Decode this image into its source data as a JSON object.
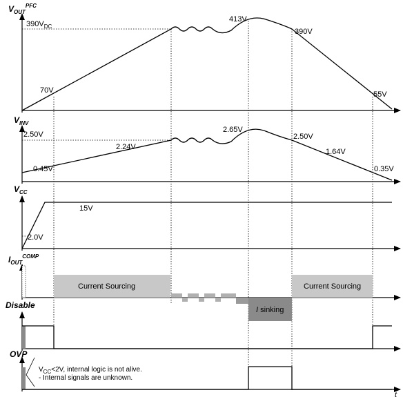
{
  "vout": {
    "label_main": "V",
    "label_sub": "OUT",
    "label_sup": "PFC",
    "level_390": "390V",
    "level_390_sub": "DC",
    "v70": "70V",
    "v413": "413V",
    "v390": "390V",
    "v55": "55V"
  },
  "vinv": {
    "label_main": "V",
    "label_sub": "INV",
    "level_250": "2.50V",
    "v045": "0.45V",
    "v224": "2.24V",
    "v265": "2.65V",
    "v250": "2.50V",
    "v164": "1.64V",
    "v035": "0.35V"
  },
  "vcc": {
    "label_main": "V",
    "label_sub": "CC",
    "v15": "15V",
    "v20": "2.0V"
  },
  "iout": {
    "label_main": "I",
    "label_sub": "OUT",
    "label_sup": "COMP",
    "sourcing_left": "Current Sourcing",
    "sourcing_right": "Current Sourcing",
    "sinking_i": "I",
    "sinking_text": " sinking"
  },
  "disable": {
    "label": "Disable"
  },
  "ovp": {
    "label": "OVP",
    "note_line1_prefix": "V",
    "note_line1_sub": "CC",
    "note_line1_rest": "<2V, internal logic is not alive.",
    "note_line2": "- Internal signals are unknown."
  },
  "time_axis": {
    "label": "t"
  },
  "colors": {
    "gray_light": "#c8c8c8",
    "gray_dark": "#8a8a8a",
    "gray_mid": "#b0b0b0"
  }
}
